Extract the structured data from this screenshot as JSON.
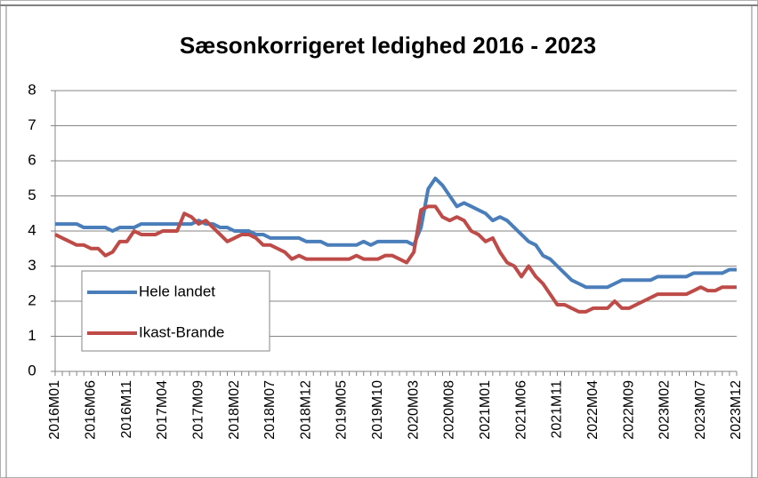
{
  "chart_data": {
    "type": "line",
    "title": "Sæsonkorrigeret ledighed 2016 - 2023",
    "categories": [
      "2016M01",
      null,
      null,
      null,
      null,
      "2016M06",
      null,
      null,
      null,
      null,
      "2016M11",
      null,
      null,
      null,
      null,
      "2017M04",
      null,
      null,
      null,
      null,
      "2017M09",
      null,
      null,
      null,
      null,
      "2018M02",
      null,
      null,
      null,
      null,
      "2018M07",
      null,
      null,
      null,
      null,
      "2018M12",
      null,
      null,
      null,
      null,
      "2019M05",
      null,
      null,
      null,
      null,
      "2019M10",
      null,
      null,
      null,
      null,
      "2020M03",
      null,
      null,
      null,
      null,
      "2020M08",
      null,
      null,
      null,
      null,
      "2021M01",
      null,
      null,
      null,
      null,
      "2021M06",
      null,
      null,
      null,
      null,
      "2021M11",
      null,
      null,
      null,
      null,
      "2022M04",
      null,
      null,
      null,
      null,
      "2022M09",
      null,
      null,
      null,
      null,
      "2023M02",
      null,
      null,
      null,
      null,
      "2023M07",
      null,
      null,
      null,
      null,
      "2023M12"
    ],
    "series": [
      {
        "name": "Hele landet",
        "color": "#4a7ebb",
        "values": [
          4.2,
          4.2,
          4.2,
          4.2,
          4.1,
          4.1,
          4.1,
          4.1,
          4.0,
          4.1,
          4.1,
          4.1,
          4.2,
          4.2,
          4.2,
          4.2,
          4.2,
          4.2,
          4.2,
          4.2,
          4.3,
          4.2,
          4.2,
          4.1,
          4.1,
          4.0,
          4.0,
          4.0,
          3.9,
          3.9,
          3.8,
          3.8,
          3.8,
          3.8,
          3.8,
          3.7,
          3.7,
          3.7,
          3.6,
          3.6,
          3.6,
          3.6,
          3.6,
          3.7,
          3.6,
          3.7,
          3.7,
          3.7,
          3.7,
          3.7,
          3.6,
          4.1,
          5.2,
          5.5,
          5.3,
          5.0,
          4.7,
          4.8,
          4.7,
          4.6,
          4.5,
          4.3,
          4.4,
          4.3,
          4.1,
          3.9,
          3.7,
          3.6,
          3.3,
          3.2,
          3.0,
          2.8,
          2.6,
          2.5,
          2.4,
          2.4,
          2.4,
          2.4,
          2.5,
          2.6,
          2.6,
          2.6,
          2.6,
          2.6,
          2.7,
          2.7,
          2.7,
          2.7,
          2.7,
          2.8,
          2.8,
          2.8,
          2.8,
          2.8,
          2.9,
          2.9
        ]
      },
      {
        "name": "Ikast-Brande",
        "color": "#be4b48",
        "values": [
          3.9,
          3.8,
          3.7,
          3.6,
          3.6,
          3.5,
          3.5,
          3.3,
          3.4,
          3.7,
          3.7,
          4.0,
          3.9,
          3.9,
          3.9,
          4.0,
          4.0,
          4.0,
          4.5,
          4.4,
          4.2,
          4.3,
          4.1,
          3.9,
          3.7,
          3.8,
          3.9,
          3.9,
          3.8,
          3.6,
          3.6,
          3.5,
          3.4,
          3.2,
          3.3,
          3.2,
          3.2,
          3.2,
          3.2,
          3.2,
          3.2,
          3.2,
          3.3,
          3.2,
          3.2,
          3.2,
          3.3,
          3.3,
          3.2,
          3.1,
          3.4,
          4.6,
          4.7,
          4.7,
          4.4,
          4.3,
          4.4,
          4.3,
          4.0,
          3.9,
          3.7,
          3.8,
          3.4,
          3.1,
          3.0,
          2.7,
          3.0,
          2.7,
          2.5,
          2.2,
          1.9,
          1.9,
          1.8,
          1.7,
          1.7,
          1.8,
          1.8,
          1.8,
          2.0,
          1.8,
          1.8,
          1.9,
          2.0,
          2.1,
          2.2,
          2.2,
          2.2,
          2.2,
          2.2,
          2.3,
          2.4,
          2.3,
          2.3,
          2.4,
          2.4,
          2.4
        ]
      }
    ],
    "ylim": [
      0,
      8
    ],
    "yticks": [
      0,
      1,
      2,
      3,
      4,
      5,
      6,
      7,
      8
    ],
    "grid": true,
    "legend": "bottom-left"
  }
}
